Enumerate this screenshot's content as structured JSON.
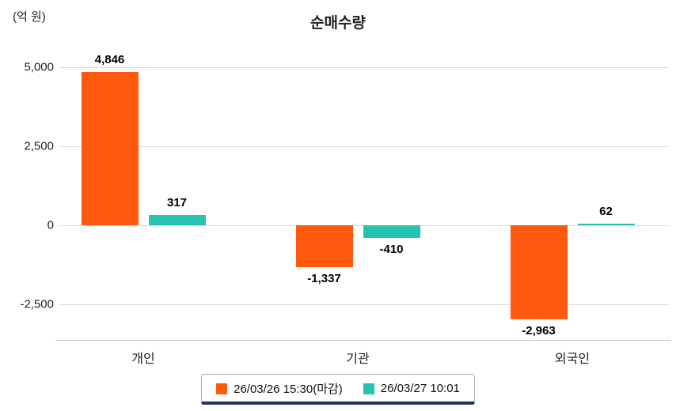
{
  "title": "순매수량",
  "unit_label": "(억 원)",
  "colors": {
    "series1": "#FF5A0D",
    "series2": "#26C3B2",
    "grid": "#dddddd",
    "axis": "#c2c2c2",
    "legend_underline": "#24355c"
  },
  "chart_data": {
    "type": "bar",
    "categories": [
      "개인",
      "기관",
      "외국인"
    ],
    "series": [
      {
        "name": "26/03/26 15:30(마감)",
        "color": "#FF5A0D",
        "values": [
          4846,
          -1337,
          -2963
        ],
        "labels": [
          "4,846",
          "-1,337",
          "-2,963"
        ]
      },
      {
        "name": "26/03/27 10:01",
        "color": "#26C3B2",
        "values": [
          317,
          -410,
          62
        ],
        "labels": [
          "317",
          "-410",
          "62"
        ]
      }
    ],
    "yticks": [
      {
        "value": 5000,
        "label": "5,000"
      },
      {
        "value": 2500,
        "label": "2,500"
      },
      {
        "value": 0,
        "label": "0"
      },
      {
        "value": -2500,
        "label": "-2,500"
      }
    ],
    "ylim": [
      -3625,
      5625
    ],
    "grid": true,
    "legend_position": "bottom",
    "xlabel": "",
    "ylabel": "(억 원)"
  }
}
